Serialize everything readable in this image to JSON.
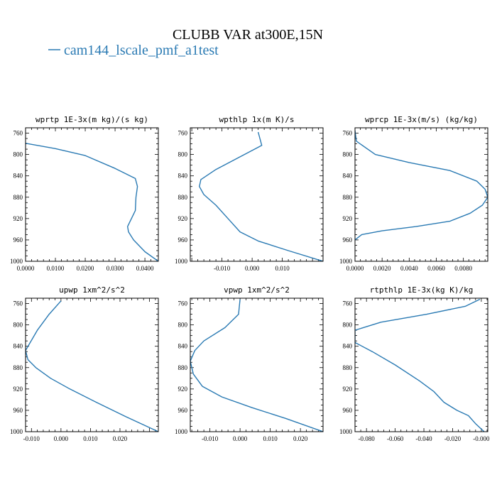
{
  "figure": {
    "title": "CLUBB VAR at300E,15N",
    "legend": {
      "label": "cam144_lscale_pmf_a1test",
      "color": "#2a7ab3"
    }
  },
  "chart_data": [
    {
      "type": "line",
      "title": "wprtp  1E-3x(m kg)/(s kg)",
      "xlim": [
        0,
        0.0445
      ],
      "ylim": [
        1000,
        750
      ],
      "xticks": [
        0,
        0.01,
        0.02,
        0.03,
        0.04
      ],
      "xtick_labels": [
        "0.0000",
        "0.0100",
        "0.0200",
        "0.0300",
        "0.0400"
      ],
      "yticks": [
        760,
        800,
        840,
        880,
        920,
        960,
        1000
      ],
      "series": [
        {
          "x": [
            0,
            0.01,
            0.02,
            0.03,
            0.0368,
            0.0375,
            0.037,
            0.0368,
            0.0342,
            0.0345,
            0.0362,
            0.04,
            0.0445
          ],
          "y": [
            779,
            789,
            802,
            826,
            845,
            860,
            880,
            905,
            935,
            945,
            960,
            982,
            1000
          ]
        }
      ]
    },
    {
      "type": "line",
      "title": "wpthlp  1x(m K)/s",
      "xlim": [
        -0.0205,
        0.0235
      ],
      "ylim": [
        1000,
        750
      ],
      "xticks": [
        -0.01,
        0,
        0.01
      ],
      "xtick_labels": [
        "-0.010",
        "0.000",
        "0.010"
      ],
      "yticks": [
        760,
        800,
        840,
        880,
        920,
        960,
        1000
      ],
      "series": [
        {
          "x": [
            0.002,
            0.0032,
            -0.012,
            -0.017,
            -0.0175,
            -0.016,
            -0.012,
            -0.008,
            -0.004,
            0.002,
            0.012,
            0.0235
          ],
          "y": [
            758,
            783,
            828,
            847,
            860,
            875,
            895,
            920,
            945,
            962,
            980,
            1000
          ]
        }
      ]
    },
    {
      "type": "line",
      "title": "wprcp  1E-3x(m/s) (kg/kg)",
      "xlim": [
        0,
        0.0098
      ],
      "ylim": [
        1000,
        750
      ],
      "xticks": [
        0,
        0.002,
        0.004,
        0.006,
        0.008
      ],
      "xtick_labels": [
        "0.0000",
        "0.0020",
        "0.0040",
        "0.0060",
        "0.0080"
      ],
      "yticks": [
        760,
        800,
        840,
        880,
        920,
        960,
        1000
      ],
      "series": [
        {
          "x": [
            0,
            0.0001,
            0.0015,
            0.004,
            0.007,
            0.009,
            0.0096,
            0.0098,
            0.0094,
            0.0085,
            0.007,
            0.0045,
            0.002,
            0.0005,
            0.0
          ],
          "y": [
            755,
            775,
            800,
            815,
            830,
            850,
            865,
            880,
            895,
            910,
            925,
            935,
            943,
            950,
            960
          ]
        }
      ]
    },
    {
      "type": "line",
      "title": "upwp  1xm^2/s^2",
      "xlim": [
        -0.012,
        0.033
      ],
      "ylim": [
        1000,
        750
      ],
      "xticks": [
        -0.01,
        0,
        0.01,
        0.02
      ],
      "xtick_labels": [
        "-0.010",
        "0.000",
        "0.010",
        "0.020"
      ],
      "yticks": [
        760,
        800,
        840,
        880,
        920,
        960,
        1000
      ],
      "series": [
        {
          "x": [
            0.0,
            -0.004,
            -0.008,
            -0.012,
            -0.0112,
            -0.0085,
            -0.0035,
            0.003,
            0.012,
            0.022,
            0.033
          ],
          "y": [
            755,
            780,
            810,
            848,
            865,
            880,
            900,
            920,
            945,
            972,
            1000
          ]
        }
      ]
    },
    {
      "type": "line",
      "title": "vpwp  1xm^2/s^2",
      "xlim": [
        -0.0165,
        0.0275
      ],
      "ylim": [
        1000,
        750
      ],
      "xticks": [
        -0.01,
        0,
        0.01,
        0.02
      ],
      "xtick_labels": [
        "-0.010",
        "0.000",
        "0.010",
        "0.020"
      ],
      "yticks": [
        760,
        800,
        840,
        880,
        920,
        960,
        1000
      ],
      "series": [
        {
          "x": [
            0.0,
            -0.0005,
            -0.005,
            -0.012,
            -0.015,
            -0.0165,
            -0.0155,
            -0.0125,
            -0.006,
            0.004,
            0.015,
            0.0275
          ],
          "y": [
            752,
            780,
            805,
            830,
            848,
            868,
            892,
            915,
            935,
            955,
            975,
            1000
          ]
        }
      ]
    },
    {
      "type": "line",
      "title": "rtpthlp  1E-3x(kg K)/kg",
      "xlim": [
        -0.088,
        0.0045
      ],
      "ylim": [
        1000,
        750
      ],
      "xticks": [
        -0.08,
        -0.06,
        -0.04,
        -0.02,
        0
      ],
      "xtick_labels": [
        "-0.080",
        "-0.060",
        "-0.040",
        "-0.020",
        "-0.000"
      ],
      "yticks": [
        760,
        800,
        840,
        880,
        920,
        960,
        1000
      ],
      "series": [
        {
          "x": [
            -0.001,
            -0.011,
            -0.038,
            -0.07,
            -0.088,
            -0.088,
            -0.076,
            -0.06,
            -0.043,
            -0.033,
            -0.026,
            -0.017,
            -0.009,
            -0.004,
            0.002
          ],
          "y": [
            752,
            765,
            780,
            795,
            810,
            833,
            850,
            875,
            905,
            925,
            945,
            960,
            970,
            985,
            1000
          ]
        }
      ]
    }
  ]
}
